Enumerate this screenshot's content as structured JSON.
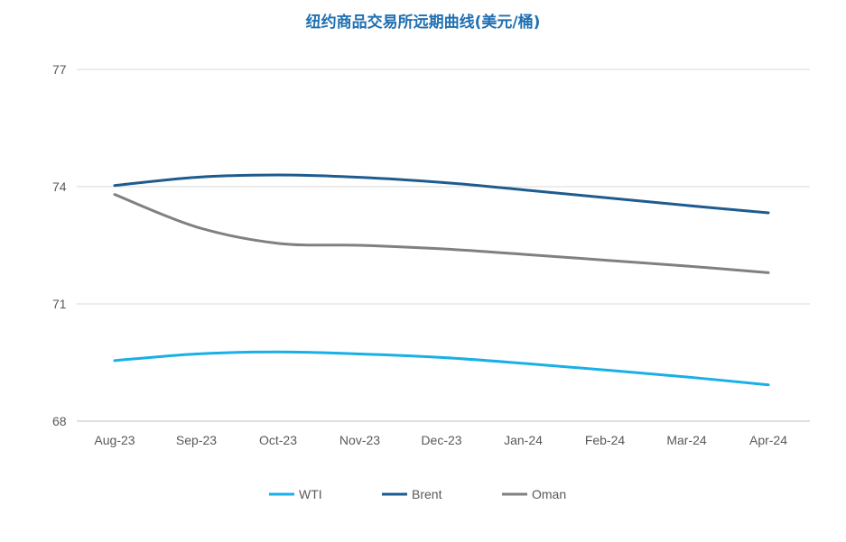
{
  "chart_data": {
    "type": "line",
    "title": "纽约商品交易所远期曲线(美元/桶)",
    "xlabel": "",
    "ylabel": "",
    "categories": [
      "Aug-23",
      "Sep-23",
      "Oct-23",
      "Nov-23",
      "Dec-23",
      "Jan-24",
      "Feb-24",
      "Mar-24",
      "Apr-24"
    ],
    "y_ticks": [
      "68",
      "71",
      "74",
      "77"
    ],
    "ylim": [
      68,
      77
    ],
    "grid": true,
    "legend_position": "bottom",
    "series": [
      {
        "name": "WTI",
        "color": "#18b0e6",
        "values": [
          69.55,
          69.72,
          69.77,
          69.72,
          69.63,
          69.48,
          69.31,
          69.13,
          68.93
        ]
      },
      {
        "name": "Brent",
        "color": "#1e5b8e",
        "values": [
          74.03,
          74.24,
          74.3,
          74.24,
          74.11,
          73.92,
          73.72,
          73.52,
          73.33
        ]
      },
      {
        "name": "Oman",
        "color": "#808080",
        "values": [
          73.8,
          72.97,
          72.55,
          72.5,
          72.41,
          72.27,
          72.12,
          71.97,
          71.8
        ]
      }
    ]
  }
}
